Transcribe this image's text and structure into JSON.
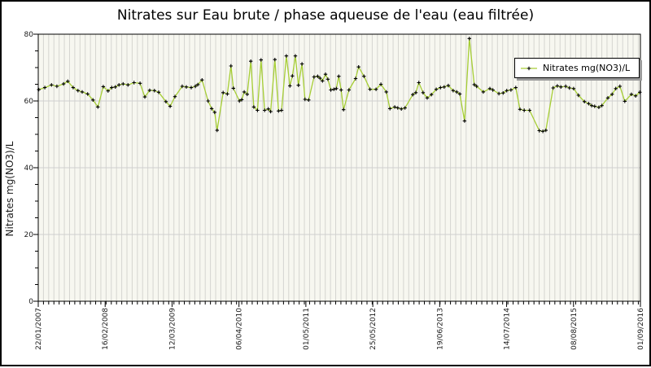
{
  "chart_data": {
    "type": "line",
    "title": "Nitrates sur Eau brute / phase aqueuse de l'eau (eau filtrée)",
    "ylabel": "Nitrates mg(NO3)/L",
    "xlabel": "",
    "ylim": [
      0,
      80
    ],
    "yticks": [
      0,
      20,
      40,
      60,
      80
    ],
    "y_minor_step": 5,
    "x_tick_labels": [
      "22/01/2007",
      "16/02/2008",
      "12/03/2009",
      "06/04/2010",
      "01/05/2011",
      "25/05/2012",
      "19/06/2013",
      "14/07/2014",
      "08/08/2015",
      "01/09/2016"
    ],
    "x_minor_divisions": 115.4,
    "grid": true,
    "legend_position": "top-right",
    "colors": {
      "plot_background": "#f7f7f0",
      "vertical_grid": "#d5d5d0",
      "horizontal_grid": "#cfcfcf",
      "axis": "#000000",
      "tick_text": "#1a1a1a"
    },
    "series": [
      {
        "name": "Nitrates mg(NO3)/L",
        "color": "#a6ce35",
        "marker": "+",
        "marker_color": "#000000",
        "points": [
          [
            0.001,
            63.4
          ],
          [
            0.011,
            64.0
          ],
          [
            0.022,
            64.8
          ],
          [
            0.031,
            64.4
          ],
          [
            0.042,
            65.1
          ],
          [
            0.049,
            65.9
          ],
          [
            0.058,
            64.0
          ],
          [
            0.066,
            63.1
          ],
          [
            0.073,
            62.7
          ],
          [
            0.082,
            62.1
          ],
          [
            0.091,
            60.3
          ],
          [
            0.099,
            58.2
          ],
          [
            0.108,
            64.3
          ],
          [
            0.116,
            63.0
          ],
          [
            0.122,
            64.0
          ],
          [
            0.128,
            64.2
          ],
          [
            0.134,
            64.8
          ],
          [
            0.141,
            65.1
          ],
          [
            0.149,
            64.8
          ],
          [
            0.159,
            65.5
          ],
          [
            0.169,
            65.3
          ],
          [
            0.177,
            61.2
          ],
          [
            0.185,
            63.2
          ],
          [
            0.193,
            63.1
          ],
          [
            0.2,
            62.6
          ],
          [
            0.212,
            59.8
          ],
          [
            0.219,
            58.4
          ],
          [
            0.227,
            61.3
          ],
          [
            0.239,
            64.4
          ],
          [
            0.246,
            64.2
          ],
          [
            0.254,
            64.0
          ],
          [
            0.261,
            64.4
          ],
          [
            0.265,
            64.9
          ],
          [
            0.272,
            66.3
          ],
          [
            0.282,
            60.0
          ],
          [
            0.288,
            57.7
          ],
          [
            0.293,
            56.6
          ],
          [
            0.297,
            51.2
          ],
          [
            0.307,
            62.5
          ],
          [
            0.314,
            62.1
          ],
          [
            0.32,
            70.5
          ],
          [
            0.324,
            63.8
          ],
          [
            0.334,
            60.0
          ],
          [
            0.338,
            60.4
          ],
          [
            0.342,
            62.7
          ],
          [
            0.347,
            62.0
          ],
          [
            0.353,
            71.9
          ],
          [
            0.358,
            58.2
          ],
          [
            0.364,
            57.2
          ],
          [
            0.37,
            72.3
          ],
          [
            0.376,
            57.2
          ],
          [
            0.382,
            57.6
          ],
          [
            0.386,
            56.8
          ],
          [
            0.393,
            72.4
          ],
          [
            0.399,
            57.0
          ],
          [
            0.404,
            57.2
          ],
          [
            0.412,
            73.5
          ],
          [
            0.418,
            64.5
          ],
          [
            0.422,
            67.5
          ],
          [
            0.427,
            73.5
          ],
          [
            0.432,
            64.7
          ],
          [
            0.438,
            71.1
          ],
          [
            0.443,
            60.5
          ],
          [
            0.449,
            60.3
          ],
          [
            0.458,
            67.2
          ],
          [
            0.464,
            67.4
          ],
          [
            0.468,
            66.8
          ],
          [
            0.472,
            66.0
          ],
          [
            0.477,
            68.0
          ],
          [
            0.481,
            66.5
          ],
          [
            0.486,
            63.3
          ],
          [
            0.491,
            63.5
          ],
          [
            0.495,
            63.7
          ],
          [
            0.499,
            67.4
          ],
          [
            0.503,
            63.3
          ],
          [
            0.507,
            57.4
          ],
          [
            0.516,
            63.3
          ],
          [
            0.527,
            66.7
          ],
          [
            0.532,
            70.2
          ],
          [
            0.541,
            67.4
          ],
          [
            0.551,
            63.5
          ],
          [
            0.561,
            63.5
          ],
          [
            0.569,
            65.0
          ],
          [
            0.578,
            62.7
          ],
          [
            0.584,
            57.7
          ],
          [
            0.592,
            58.2
          ],
          [
            0.597,
            57.9
          ],
          [
            0.603,
            57.6
          ],
          [
            0.609,
            57.9
          ],
          [
            0.622,
            61.9
          ],
          [
            0.627,
            62.5
          ],
          [
            0.632,
            65.5
          ],
          [
            0.639,
            62.5
          ],
          [
            0.646,
            60.9
          ],
          [
            0.653,
            61.9
          ],
          [
            0.661,
            63.5
          ],
          [
            0.668,
            64.0
          ],
          [
            0.674,
            64.2
          ],
          [
            0.681,
            64.6
          ],
          [
            0.689,
            63.1
          ],
          [
            0.695,
            62.7
          ],
          [
            0.7,
            62.1
          ],
          [
            0.708,
            54.0
          ],
          [
            0.716,
            78.7
          ],
          [
            0.724,
            64.9
          ],
          [
            0.728,
            64.4
          ],
          [
            0.739,
            62.7
          ],
          [
            0.75,
            63.7
          ],
          [
            0.755,
            63.3
          ],
          [
            0.765,
            62.2
          ],
          [
            0.772,
            62.4
          ],
          [
            0.778,
            63.1
          ],
          [
            0.785,
            63.3
          ],
          [
            0.793,
            64.0
          ],
          [
            0.8,
            57.5
          ],
          [
            0.807,
            57.2
          ],
          [
            0.816,
            57.2
          ],
          [
            0.832,
            51.1
          ],
          [
            0.838,
            50.9
          ],
          [
            0.843,
            51.2
          ],
          [
            0.855,
            63.9
          ],
          [
            0.862,
            64.5
          ],
          [
            0.868,
            64.2
          ],
          [
            0.876,
            64.4
          ],
          [
            0.882,
            63.9
          ],
          [
            0.889,
            63.7
          ],
          [
            0.897,
            61.7
          ],
          [
            0.907,
            59.8
          ],
          [
            0.914,
            59.2
          ],
          [
            0.919,
            58.6
          ],
          [
            0.924,
            58.4
          ],
          [
            0.931,
            58.1
          ],
          [
            0.936,
            58.6
          ],
          [
            0.946,
            60.9
          ],
          [
            0.953,
            62.0
          ],
          [
            0.959,
            63.7
          ],
          [
            0.966,
            64.4
          ],
          [
            0.974,
            59.9
          ],
          [
            0.985,
            62.0
          ],
          [
            0.992,
            61.5
          ],
          [
            0.999,
            62.6
          ]
        ]
      }
    ]
  }
}
